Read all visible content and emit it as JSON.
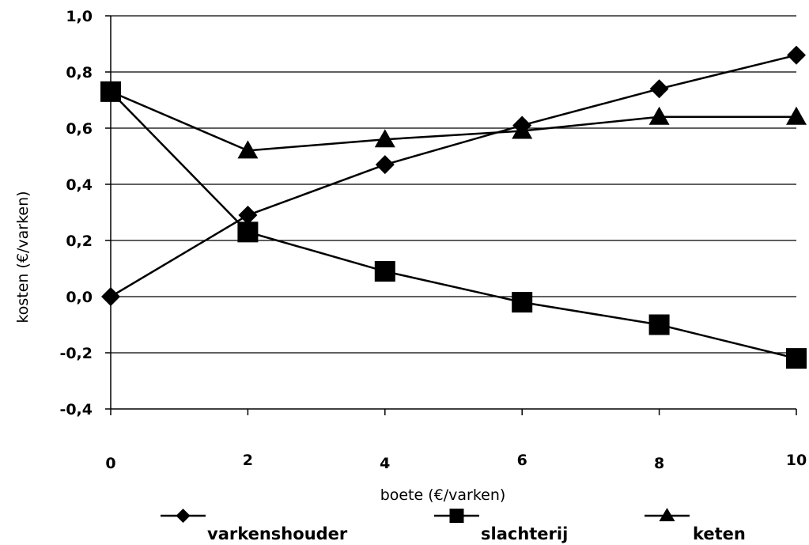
{
  "chart_data": {
    "type": "line",
    "x": [
      0,
      2,
      4,
      6,
      8,
      10
    ],
    "x_tick_labels": [
      "0",
      "2",
      "4",
      "6",
      "8",
      "10"
    ],
    "y_tick_labels": [
      "1,0",
      "0,8",
      "0,6",
      "0,4",
      "0,2",
      "0,0",
      "-0,2",
      "-0,4"
    ],
    "y_ticks": [
      1.0,
      0.8,
      0.6,
      0.4,
      0.2,
      0.0,
      -0.2,
      -0.4
    ],
    "ylim": [
      -0.4,
      1.0
    ],
    "xlim": [
      0,
      10
    ],
    "xlabel": "boete (€/varken)",
    "ylabel": "kosten (€/varken)",
    "grid": "horizontal",
    "legend_position": "bottom",
    "series": [
      {
        "name": "varkenshouder",
        "marker": "diamond",
        "color": "#000000",
        "values": [
          0.0,
          0.29,
          0.47,
          0.61,
          0.74,
          0.86
        ]
      },
      {
        "name": "slachterij",
        "marker": "square",
        "color": "#000000",
        "values": [
          0.73,
          0.23,
          0.09,
          -0.02,
          -0.1,
          -0.22
        ]
      },
      {
        "name": "keten",
        "marker": "triangle",
        "color": "#000000",
        "values": [
          0.73,
          0.52,
          0.56,
          0.59,
          0.64,
          0.64
        ]
      }
    ]
  }
}
